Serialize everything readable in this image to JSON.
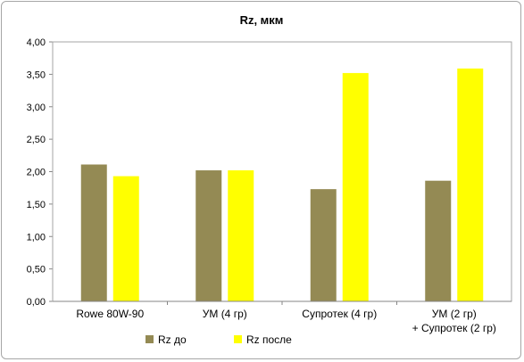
{
  "chart_data": {
    "type": "bar",
    "title": "Rz, мкм",
    "xlabel": "",
    "ylabel": "",
    "ylim": [
      0,
      4
    ],
    "y_ticks": [
      "0,00",
      "0,50",
      "1,00",
      "1,50",
      "2,00",
      "2,50",
      "3,00",
      "3,50",
      "4,00"
    ],
    "categories": [
      [
        "Rowe 80W-90"
      ],
      [
        "УМ (4 гр)"
      ],
      [
        "Супротек (4 гр)"
      ],
      [
        "УМ (2 гр)",
        "+ Супротек (2 гр)"
      ]
    ],
    "series": [
      {
        "name": "Rz до",
        "color": "#948a54",
        "values": [
          2.11,
          2.02,
          1.73,
          1.86
        ]
      },
      {
        "name": "Rz после",
        "color": "#ffff00",
        "values": [
          1.93,
          2.02,
          3.52,
          3.59
        ]
      }
    ],
    "grid": false,
    "legend_position": "bottom"
  }
}
